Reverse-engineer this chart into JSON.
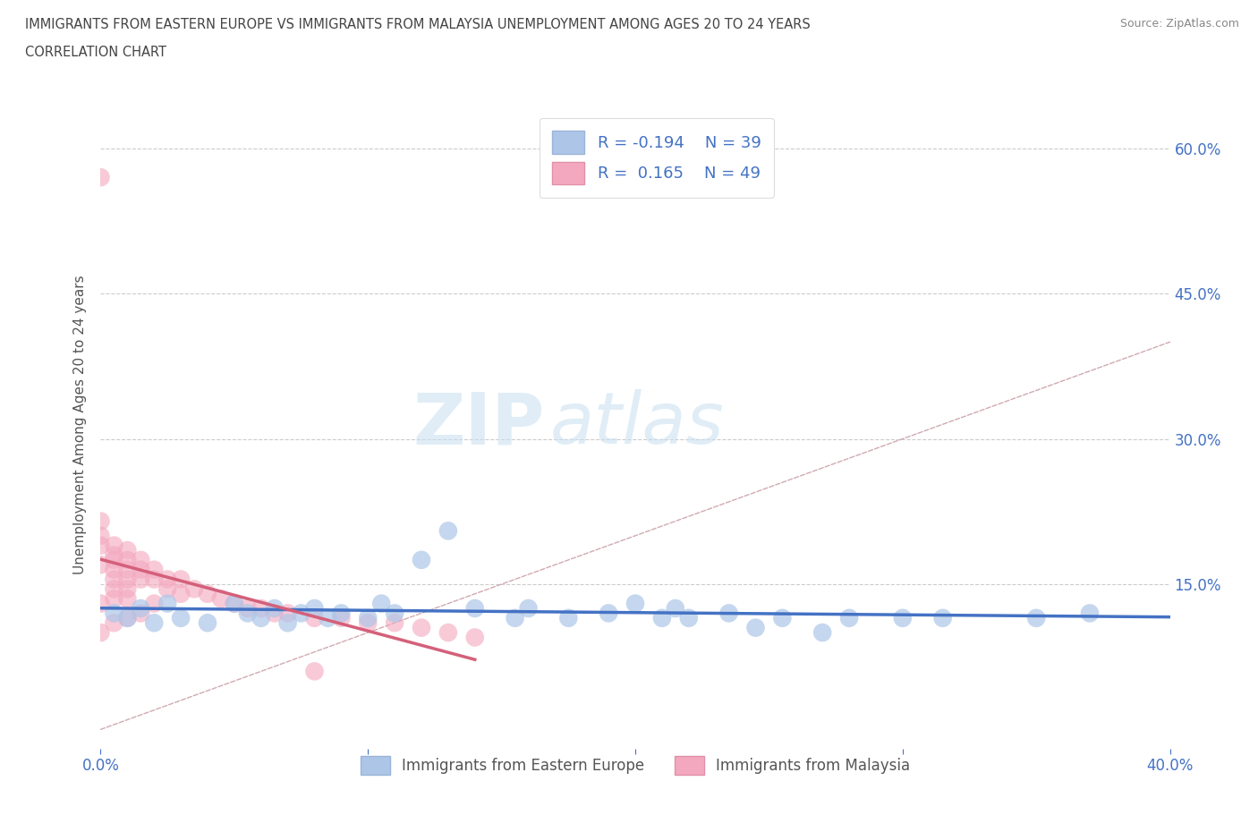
{
  "title_line1": "IMMIGRANTS FROM EASTERN EUROPE VS IMMIGRANTS FROM MALAYSIA UNEMPLOYMENT AMONG AGES 20 TO 24 YEARS",
  "title_line2": "CORRELATION CHART",
  "source": "Source: ZipAtlas.com",
  "ylabel": "Unemployment Among Ages 20 to 24 years",
  "xlim": [
    0.0,
    0.4
  ],
  "ylim": [
    -0.02,
    0.65
  ],
  "watermark": "ZIPatlas",
  "legend_R1": "R = -0.194",
  "legend_N1": "N = 39",
  "legend_R2": "R =  0.165",
  "legend_N2": "N = 49",
  "color_eastern_europe": "#adc6e8",
  "color_malaysia": "#f4a8bf",
  "trendline_color_eastern": "#4472c4",
  "trendline_color_malaysia": "#d4607a",
  "diagonal_color": "#d0aab0",
  "background_color": "#ffffff",
  "title_color": "#444444",
  "axis_color": "#4472c4",
  "eastern_europe_x": [
    0.005,
    0.01,
    0.015,
    0.02,
    0.025,
    0.03,
    0.04,
    0.05,
    0.055,
    0.06,
    0.065,
    0.07,
    0.075,
    0.08,
    0.085,
    0.09,
    0.1,
    0.105,
    0.11,
    0.12,
    0.13,
    0.14,
    0.155,
    0.16,
    0.175,
    0.19,
    0.2,
    0.21,
    0.215,
    0.22,
    0.235,
    0.245,
    0.255,
    0.27,
    0.28,
    0.3,
    0.315,
    0.35,
    0.37
  ],
  "eastern_europe_y": [
    0.12,
    0.115,
    0.125,
    0.11,
    0.13,
    0.115,
    0.11,
    0.13,
    0.12,
    0.115,
    0.125,
    0.11,
    0.12,
    0.125,
    0.115,
    0.12,
    0.115,
    0.13,
    0.12,
    0.175,
    0.205,
    0.125,
    0.115,
    0.125,
    0.115,
    0.12,
    0.13,
    0.115,
    0.125,
    0.115,
    0.12,
    0.105,
    0.115,
    0.1,
    0.115,
    0.115,
    0.115,
    0.115,
    0.12
  ],
  "malaysia_x": [
    0.0,
    0.0,
    0.0,
    0.0,
    0.0,
    0.0,
    0.0,
    0.005,
    0.005,
    0.005,
    0.005,
    0.005,
    0.005,
    0.005,
    0.005,
    0.01,
    0.01,
    0.01,
    0.01,
    0.01,
    0.01,
    0.01,
    0.015,
    0.015,
    0.015,
    0.015,
    0.02,
    0.02,
    0.02,
    0.025,
    0.025,
    0.03,
    0.03,
    0.035,
    0.04,
    0.045,
    0.05,
    0.055,
    0.06,
    0.065,
    0.07,
    0.08,
    0.09,
    0.1,
    0.11,
    0.12,
    0.13,
    0.14,
    0.08
  ],
  "malaysia_y": [
    0.57,
    0.215,
    0.2,
    0.19,
    0.17,
    0.13,
    0.1,
    0.19,
    0.18,
    0.175,
    0.165,
    0.155,
    0.145,
    0.135,
    0.11,
    0.185,
    0.175,
    0.165,
    0.155,
    0.145,
    0.135,
    0.115,
    0.175,
    0.165,
    0.155,
    0.12,
    0.165,
    0.155,
    0.13,
    0.155,
    0.145,
    0.155,
    0.14,
    0.145,
    0.14,
    0.135,
    0.13,
    0.125,
    0.125,
    0.12,
    0.12,
    0.115,
    0.115,
    0.11,
    0.11,
    0.105,
    0.1,
    0.095,
    0.06
  ]
}
